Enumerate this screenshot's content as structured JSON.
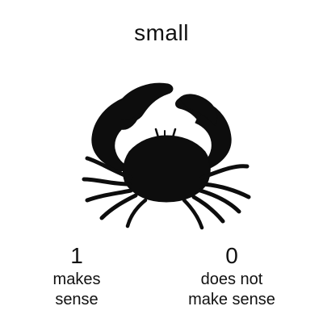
{
  "prompt": {
    "word": "small"
  },
  "image": {
    "icon": "crab-silhouette",
    "color": "#0d0d0d"
  },
  "options": [
    {
      "value": "1",
      "line1": "makes",
      "line2": "sense"
    },
    {
      "value": "0",
      "line1": "does not",
      "line2": "make sense"
    }
  ]
}
